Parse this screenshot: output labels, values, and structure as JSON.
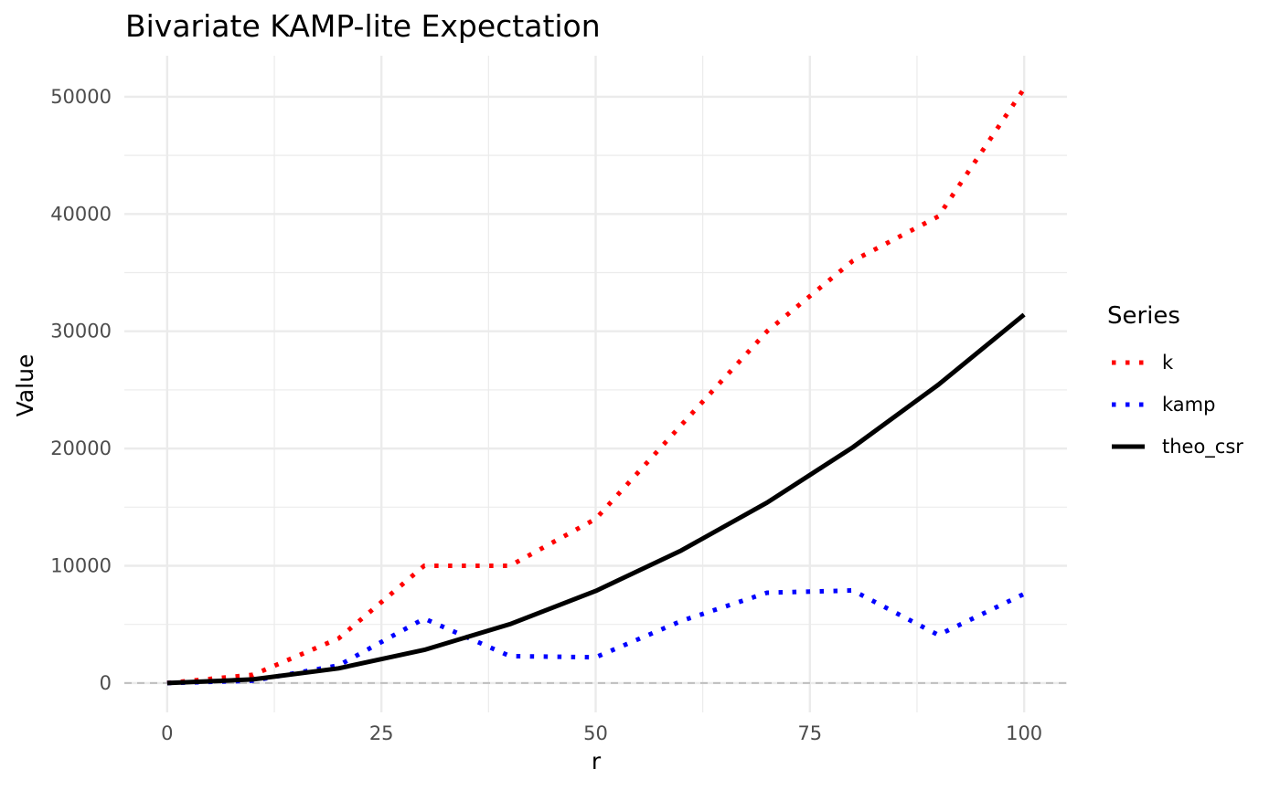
{
  "chart_data": {
    "type": "line",
    "title": "Bivariate KAMP-lite Expectation",
    "xlabel": "r",
    "ylabel": "Value",
    "xlim": [
      -5,
      105
    ],
    "ylim": [
      -2500,
      53500
    ],
    "x_ticks": [
      0,
      25,
      50,
      75,
      100
    ],
    "y_ticks": [
      0,
      10000,
      20000,
      30000,
      40000,
      50000
    ],
    "grid": true,
    "reference_line": {
      "y": 0,
      "color": "#bebebe",
      "style": "dashed"
    },
    "legend": {
      "title": "Series",
      "position": "right"
    },
    "x": [
      0,
      10,
      20,
      30,
      40,
      50,
      60,
      70,
      80,
      90,
      100
    ],
    "series": [
      {
        "name": "k",
        "color": "#ff0000",
        "style": "dotted",
        "values": [
          0,
          700,
          3800,
          10000,
          10000,
          14000,
          22000,
          30000,
          36000,
          39800,
          50700
        ]
      },
      {
        "name": "kamp",
        "color": "#0000ff",
        "style": "dotted",
        "values": [
          0,
          200,
          1500,
          5500,
          2300,
          2200,
          5300,
          7700,
          7900,
          4100,
          7600
        ]
      },
      {
        "name": "theo_csr",
        "color": "#000000",
        "style": "solid",
        "values": [
          0,
          314,
          1257,
          2827,
          5027,
          7854,
          11310,
          15394,
          20106,
          25447,
          31416
        ]
      }
    ]
  }
}
